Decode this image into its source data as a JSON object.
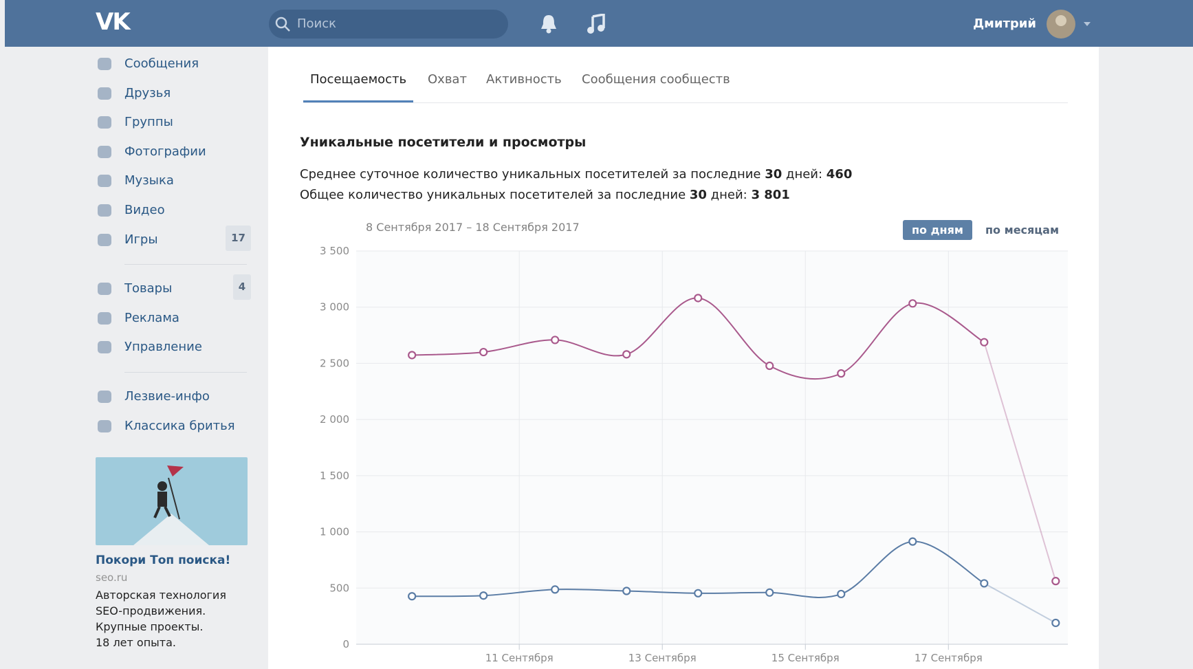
{
  "header": {
    "logo": "VK",
    "search_placeholder": "Поиск",
    "user_name": "Дмитрий"
  },
  "sidebar": {
    "groups": [
      [
        {
          "label": "Сообщения"
        },
        {
          "label": "Друзья"
        },
        {
          "label": "Группы"
        },
        {
          "label": "Фотографии"
        },
        {
          "label": "Музыка"
        },
        {
          "label": "Видео"
        },
        {
          "label": "Игры",
          "badge": 17
        }
      ],
      [
        {
          "label": "Товары",
          "badge": 4
        },
        {
          "label": "Реклама"
        },
        {
          "label": "Управление"
        }
      ],
      [
        {
          "label": "Лезвие-инфо"
        },
        {
          "label": "Классика бритья"
        }
      ]
    ],
    "ad": {
      "title": "Покори Топ поиска!",
      "domain": "seo.ru",
      "text": [
        "Авторская технология",
        "SEO-продвижения.",
        "Крупные проекты.",
        "18 лет опыта."
      ]
    }
  },
  "tabs": [
    "Посещаемость",
    "Охват",
    "Активность",
    "Сообщения сообществ"
  ],
  "active_tab": 0,
  "section_title": "Уникальные посетители и просмотры",
  "summary": [
    {
      "text": "Среднее суточное количество уникальных посетителей за последние ",
      "days": 30,
      "days_suffix": " дней: ",
      "value": 460
    },
    {
      "text": "Общее количество уникальных посетителей за последние ",
      "days": 30,
      "days_suffix": " дней: ",
      "value": "3 801"
    }
  ],
  "chart_data": {
    "type": "line",
    "date_range": "8 Сентября 2017 – 18 Сентября 2017",
    "period_buttons": [
      "по дням",
      "по месяцам"
    ],
    "active_period": 0,
    "x": [
      9.5,
      10.5,
      11.5,
      12.5,
      13.5,
      14.5,
      15.5,
      16.5,
      17.5,
      18.5
    ],
    "xlim": [
      8.72,
      18.67
    ],
    "xticks": [
      {
        "value": 11,
        "label": "11 Сентября"
      },
      {
        "value": 13,
        "label": "13 Сентября"
      },
      {
        "value": 15,
        "label": "15 Сентября"
      },
      {
        "value": 17,
        "label": "17 Сентября"
      }
    ],
    "ylim": [
      0,
      3500
    ],
    "yticks": [
      0,
      500,
      {
        "value": 1000,
        "label": "1 000"
      },
      {
        "value": 1500,
        "label": "1 500"
      },
      {
        "value": 2000,
        "label": "2 000"
      },
      {
        "value": 2500,
        "label": "2 500"
      },
      {
        "value": 3000,
        "label": "3 000"
      },
      {
        "value": 3500,
        "label": "3 500"
      }
    ],
    "grid": true,
    "series": [
      {
        "color": "#a9598c",
        "values": [
          2573,
          2600,
          2708,
          2580,
          3081,
          2478,
          2410,
          3033,
          2688,
          562
        ]
      },
      {
        "color": "#5a7ca5",
        "values": [
          427,
          433,
          487,
          474,
          454,
          460,
          447,
          914,
          542,
          190
        ]
      }
    ]
  }
}
